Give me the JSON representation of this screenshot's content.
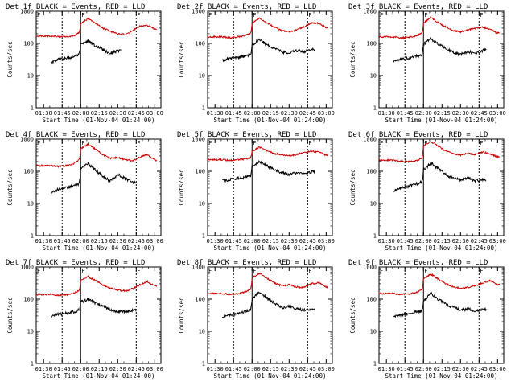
{
  "figure": {
    "layout": "3x3 grid",
    "background": "#ffffff"
  },
  "colors": {
    "events": "#000000",
    "lld": "#cc0000",
    "axes": "#000000"
  },
  "panel_common": {
    "title_suffix": "BLACK = Events, RED = LLD",
    "xlabel": "Start Time (01-Nov-04 01:24:00)",
    "ylabel": "Counts/sec",
    "xtick_labels": [
      "01:30",
      "01:45",
      "02:00",
      "02:15",
      "02:30",
      "02:45",
      "03:00"
    ],
    "ytick_labels": [
      "1",
      "10",
      "100",
      "1000"
    ],
    "flag_label": "F",
    "time_markers": [
      "01:45",
      "02:00",
      "02:45"
    ]
  },
  "chart_data": [
    {
      "type": "line",
      "title": "Det 1f BLACK = Events, RED = LLD",
      "xlabel": "Start Time (01-Nov-04 01:24:00)",
      "ylabel": "Counts/sec",
      "yscale": "log",
      "ylim": [
        1,
        1000
      ],
      "xlim": [
        "01:24",
        "03:05"
      ],
      "x": [
        "01:36",
        "01:42",
        "01:48",
        "01:54",
        "01:58",
        "02:00",
        "02:06",
        "02:12",
        "02:18",
        "02:24",
        "02:30",
        "02:36",
        "02:42",
        "02:48",
        "02:54",
        "03:00"
      ],
      "series": [
        {
          "name": "Events",
          "color": "#000000",
          "x_range": [
            "01:36",
            "02:33"
          ],
          "values": [
            25,
            32,
            34,
            40,
            45,
            90,
            120,
            85,
            65,
            48,
            60,
            null,
            null,
            null,
            null,
            null
          ]
        },
        {
          "name": "LLD",
          "color": "#cc0000",
          "x_range": [
            "01:24",
            "03:02"
          ],
          "values": [
            170,
            160,
            160,
            170,
            210,
            400,
            600,
            420,
            300,
            240,
            200,
            190,
            250,
            350,
            360,
            280
          ]
        }
      ]
    },
    {
      "type": "line",
      "title": "Det 2f BLACK = Events, RED = LLD",
      "xlabel": "Start Time (01-Nov-04 01:24:00)",
      "ylabel": "Counts/sec",
      "yscale": "log",
      "ylim": [
        1,
        1000
      ],
      "xlim": [
        "01:24",
        "03:05"
      ],
      "x": [
        "01:36",
        "01:42",
        "01:48",
        "01:54",
        "01:58",
        "02:00",
        "02:06",
        "02:12",
        "02:18",
        "02:24",
        "02:30",
        "02:36",
        "02:42",
        "02:48",
        "02:54",
        "03:00"
      ],
      "series": [
        {
          "name": "Events",
          "color": "#000000",
          "x_range": [
            "01:36",
            "02:51"
          ],
          "values": [
            30,
            35,
            36,
            40,
            45,
            90,
            130,
            90,
            70,
            55,
            50,
            60,
            55,
            65,
            null,
            null
          ]
        },
        {
          "name": "LLD",
          "color": "#cc0000",
          "x_range": [
            "01:24",
            "03:02"
          ],
          "values": [
            160,
            150,
            160,
            170,
            200,
            420,
            620,
            430,
            320,
            250,
            230,
            260,
            330,
            440,
            420,
            310
          ]
        }
      ]
    },
    {
      "type": "line",
      "title": "Det 3f BLACK = Events, RED = LLD",
      "xlabel": "Start Time (01-Nov-04 01:24:00)",
      "ylabel": "Counts/sec",
      "yscale": "log",
      "ylim": [
        1,
        1000
      ],
      "xlim": [
        "01:24",
        "03:05"
      ],
      "x": [
        "01:36",
        "01:42",
        "01:48",
        "01:54",
        "01:58",
        "02:00",
        "02:06",
        "02:12",
        "02:18",
        "02:24",
        "02:30",
        "02:36",
        "02:42",
        "02:48",
        "02:54",
        "03:00"
      ],
      "series": [
        {
          "name": "Events",
          "color": "#000000",
          "x_range": [
            "01:36",
            "02:51"
          ],
          "values": [
            28,
            33,
            35,
            40,
            42,
            95,
            140,
            95,
            70,
            52,
            45,
            55,
            50,
            60,
            null,
            null
          ]
        },
        {
          "name": "LLD",
          "color": "#cc0000",
          "x_range": [
            "01:24",
            "03:02"
          ],
          "values": [
            160,
            150,
            155,
            170,
            200,
            430,
            640,
            440,
            330,
            250,
            230,
            260,
            300,
            320,
            280,
            210
          ]
        }
      ]
    },
    {
      "type": "line",
      "title": "Det 4f BLACK = Events, RED = LLD",
      "xlabel": "Start Time (01-Nov-04 01:24:00)",
      "ylabel": "Counts/sec",
      "yscale": "log",
      "ylim": [
        1,
        1000
      ],
      "xlim": [
        "01:24",
        "03:05"
      ],
      "x": [
        "01:36",
        "01:42",
        "01:48",
        "01:54",
        "01:58",
        "02:00",
        "02:06",
        "02:12",
        "02:18",
        "02:24",
        "02:30",
        "02:36",
        "02:42",
        "02:48",
        "02:54",
        "03:00"
      ],
      "series": [
        {
          "name": "Events",
          "color": "#000000",
          "x_range": [
            "01:36",
            "02:45"
          ],
          "values": [
            22,
            28,
            30,
            35,
            40,
            120,
            170,
            110,
            70,
            50,
            80,
            60,
            45,
            null,
            null,
            null
          ]
        },
        {
          "name": "LLD",
          "color": "#cc0000",
          "x_range": [
            "01:24",
            "03:02"
          ],
          "values": [
            150,
            140,
            150,
            170,
            220,
            500,
            700,
            480,
            330,
            250,
            270,
            230,
            210,
            280,
            330,
            220
          ]
        }
      ]
    },
    {
      "type": "line",
      "title": "Det 5f BLACK = Events, RED = LLD",
      "xlabel": "Start Time (01-Nov-04 01:24:00)",
      "ylabel": "Counts/sec",
      "yscale": "log",
      "ylim": [
        1,
        1000
      ],
      "xlim": [
        "01:24",
        "03:05"
      ],
      "x": [
        "01:36",
        "01:42",
        "01:48",
        "01:54",
        "01:58",
        "02:00",
        "02:06",
        "02:12",
        "02:18",
        "02:24",
        "02:30",
        "02:36",
        "02:42",
        "02:48",
        "02:54",
        "03:00"
      ],
      "series": [
        {
          "name": "Events",
          "color": "#000000",
          "x_range": [
            "01:36",
            "02:51"
          ],
          "values": [
            50,
            55,
            60,
            65,
            70,
            140,
            200,
            150,
            110,
            90,
            80,
            90,
            85,
            95,
            null,
            null
          ]
        },
        {
          "name": "LLD",
          "color": "#cc0000",
          "x_range": [
            "01:24",
            "03:02"
          ],
          "values": [
            230,
            220,
            230,
            240,
            260,
            420,
            560,
            430,
            360,
            320,
            300,
            330,
            380,
            420,
            400,
            320
          ]
        }
      ]
    },
    {
      "type": "line",
      "title": "Det 6f BLACK = Events, RED = LLD",
      "xlabel": "Start Time (01-Nov-04 01:24:00)",
      "ylabel": "Counts/sec",
      "yscale": "log",
      "ylim": [
        1,
        1000
      ],
      "xlim": [
        "01:24",
        "03:05"
      ],
      "x": [
        "01:36",
        "01:42",
        "01:48",
        "01:54",
        "01:58",
        "02:00",
        "02:06",
        "02:12",
        "02:18",
        "02:24",
        "02:30",
        "02:36",
        "02:42",
        "02:48",
        "02:54",
        "03:00"
      ],
      "series": [
        {
          "name": "Events",
          "color": "#000000",
          "x_range": [
            "01:36",
            "02:51"
          ],
          "values": [
            25,
            30,
            35,
            40,
            45,
            110,
            180,
            120,
            80,
            60,
            55,
            65,
            50,
            55,
            null,
            null
          ]
        },
        {
          "name": "LLD",
          "color": "#cc0000",
          "x_range": [
            "01:24",
            "03:02"
          ],
          "values": [
            220,
            200,
            200,
            210,
            250,
            600,
            850,
            600,
            430,
            350,
            320,
            360,
            330,
            400,
            350,
            280
          ]
        }
      ]
    },
    {
      "type": "line",
      "title": "Det 7f BLACK = Events, RED = LLD",
      "xlabel": "Start Time (01-Nov-04 01:24:00)",
      "ylabel": "Counts/sec",
      "yscale": "log",
      "ylim": [
        1,
        1000
      ],
      "xlim": [
        "01:24",
        "03:05"
      ],
      "x": [
        "01:36",
        "01:42",
        "01:48",
        "01:54",
        "01:58",
        "02:00",
        "02:06",
        "02:12",
        "02:18",
        "02:24",
        "02:30",
        "02:36",
        "02:42",
        "02:48",
        "02:54",
        "03:00"
      ],
      "series": [
        {
          "name": "Events",
          "color": "#000000",
          "x_range": [
            "01:36",
            "02:45"
          ],
          "values": [
            30,
            34,
            36,
            40,
            45,
            80,
            100,
            75,
            60,
            48,
            40,
            42,
            45,
            null,
            null,
            null
          ]
        },
        {
          "name": "LLD",
          "color": "#cc0000",
          "x_range": [
            "01:24",
            "03:02"
          ],
          "values": [
            140,
            130,
            135,
            150,
            180,
            380,
            500,
            380,
            280,
            220,
            190,
            180,
            210,
            280,
            350,
            260
          ]
        }
      ]
    },
    {
      "type": "line",
      "title": "Det 8f BLACK = Events, RED = LLD",
      "xlabel": "Start Time (01-Nov-04 01:24:00)",
      "ylabel": "Counts/sec",
      "yscale": "log",
      "ylim": [
        1,
        1000
      ],
      "xlim": [
        "01:24",
        "03:05"
      ],
      "x": [
        "01:36",
        "01:42",
        "01:48",
        "01:54",
        "01:58",
        "02:00",
        "02:06",
        "02:12",
        "02:18",
        "02:24",
        "02:30",
        "02:36",
        "02:42",
        "02:48",
        "02:54",
        "03:00"
      ],
      "series": [
        {
          "name": "Events",
          "color": "#000000",
          "x_range": [
            "01:36",
            "02:51"
          ],
          "values": [
            28,
            32,
            35,
            40,
            45,
            100,
            160,
            110,
            75,
            55,
            60,
            50,
            45,
            50,
            null,
            null
          ]
        },
        {
          "name": "LLD",
          "color": "#cc0000",
          "x_range": [
            "01:24",
            "03:02"
          ],
          "values": [
            150,
            140,
            145,
            165,
            200,
            450,
            650,
            450,
            320,
            260,
            280,
            240,
            230,
            300,
            320,
            240
          ]
        }
      ]
    },
    {
      "type": "line",
      "title": "Det 9f BLACK = Events, RED = LLD",
      "xlabel": "Start Time (01-Nov-04 01:24:00)",
      "ylabel": "Counts/sec",
      "yscale": "log",
      "ylim": [
        1,
        1000
      ],
      "xlim": [
        "01:24",
        "03:05"
      ],
      "x": [
        "01:36",
        "01:42",
        "01:48",
        "01:54",
        "01:58",
        "02:00",
        "02:06",
        "02:12",
        "02:18",
        "02:24",
        "02:30",
        "02:36",
        "02:42",
        "02:48",
        "02:54",
        "03:00"
      ],
      "series": [
        {
          "name": "Events",
          "color": "#000000",
          "x_range": [
            "01:36",
            "02:51"
          ],
          "values": [
            30,
            33,
            35,
            40,
            42,
            85,
            150,
            100,
            70,
            55,
            45,
            50,
            42,
            48,
            null,
            null
          ]
        },
        {
          "name": "LLD",
          "color": "#cc0000",
          "x_range": [
            "01:24",
            "03:02"
          ],
          "values": [
            150,
            140,
            145,
            160,
            190,
            420,
            600,
            420,
            300,
            240,
            220,
            230,
            260,
            320,
            380,
            280
          ]
        }
      ]
    }
  ]
}
